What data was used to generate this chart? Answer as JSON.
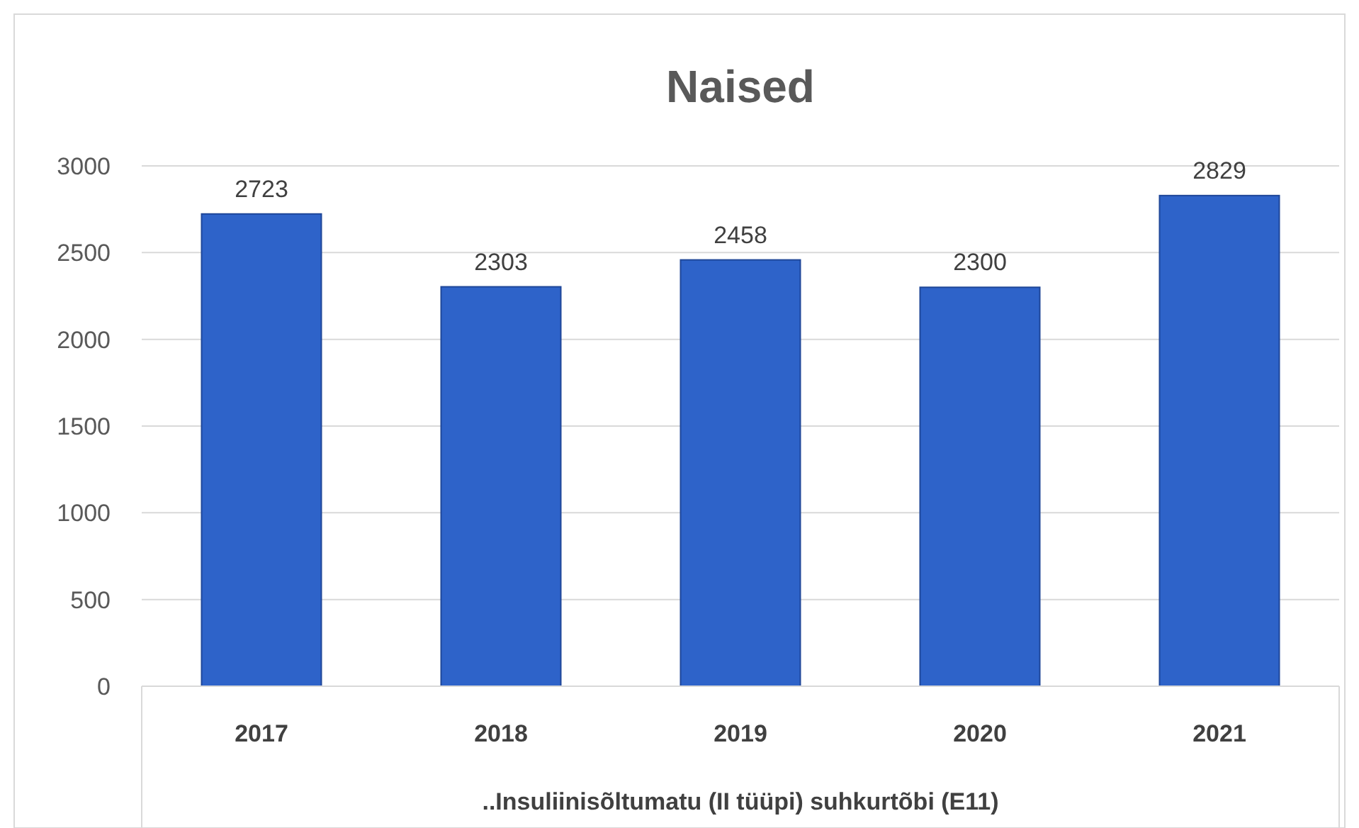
{
  "chart_data": {
    "type": "bar",
    "title": "Naised",
    "xlabel": "..Insuliinisõltumatu (II tüüpi) suhkurtõbi (E11)",
    "categories": [
      "2017",
      "2018",
      "2019",
      "2020",
      "2021"
    ],
    "values": [
      2723,
      2303,
      2458,
      2300,
      2829
    ],
    "color": "#2e63c9",
    "ylim": [
      0,
      3000
    ],
    "yticks": [
      0,
      500,
      1000,
      1500,
      2000,
      2500,
      3000
    ],
    "grid": "y",
    "data_labels": true
  }
}
